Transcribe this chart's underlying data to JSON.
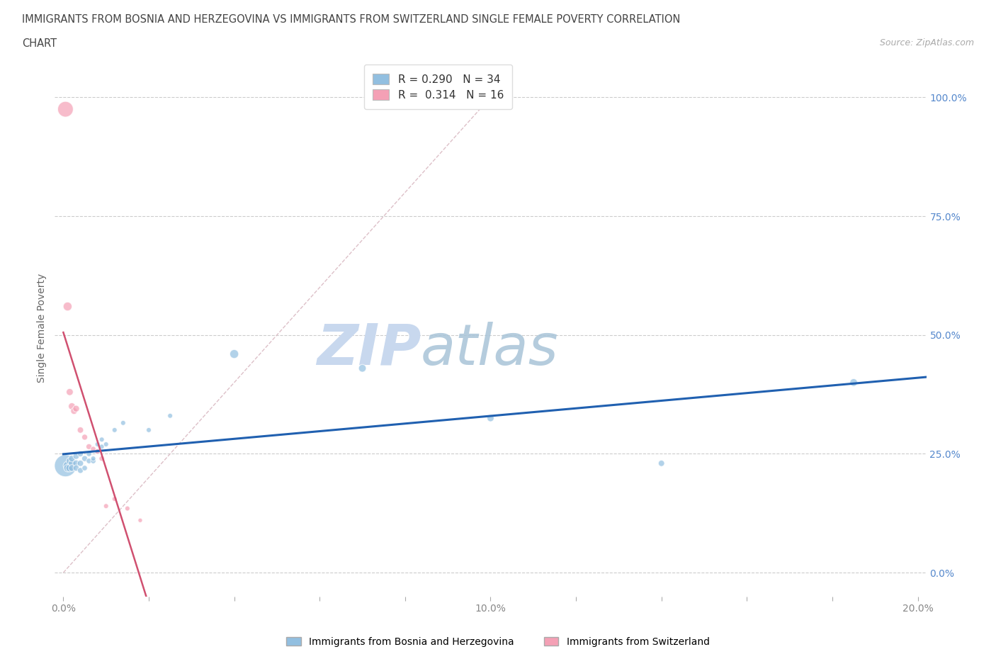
{
  "title_line1": "IMMIGRANTS FROM BOSNIA AND HERZEGOVINA VS IMMIGRANTS FROM SWITZERLAND SINGLE FEMALE POVERTY CORRELATION",
  "title_line2": "CHART",
  "source": "Source: ZipAtlas.com",
  "ylabel": "Single Female Poverty",
  "xlim": [
    -0.002,
    0.202
  ],
  "ylim": [
    -0.05,
    1.08
  ],
  "ytick_values": [
    0.0,
    0.25,
    0.5,
    0.75,
    1.0
  ],
  "xtick_values": [
    0.0,
    0.02,
    0.04,
    0.06,
    0.08,
    0.1,
    0.12,
    0.14,
    0.16,
    0.18,
    0.2
  ],
  "r_bosnia": 0.29,
  "n_bosnia": 34,
  "r_swiss": 0.314,
  "n_swiss": 16,
  "color_bosnia": "#92bfe0",
  "color_swiss": "#f4a0b5",
  "trendline_bosnia_color": "#2060b0",
  "trendline_swiss_color": "#d05070",
  "diagonal_color": "#ddc0c8",
  "background_color": "#ffffff",
  "watermark_zip": "ZIP",
  "watermark_atlas": "atlas",
  "bosnia_x": [
    0.0005,
    0.001,
    0.001,
    0.0015,
    0.0015,
    0.002,
    0.002,
    0.002,
    0.003,
    0.003,
    0.003,
    0.004,
    0.004,
    0.004,
    0.005,
    0.005,
    0.006,
    0.006,
    0.007,
    0.007,
    0.008,
    0.008,
    0.009,
    0.009,
    0.01,
    0.012,
    0.014,
    0.02,
    0.025,
    0.04,
    0.07,
    0.1,
    0.14,
    0.185
  ],
  "bosnia_y": [
    0.225,
    0.225,
    0.22,
    0.22,
    0.235,
    0.23,
    0.22,
    0.24,
    0.23,
    0.22,
    0.245,
    0.23,
    0.215,
    0.25,
    0.24,
    0.22,
    0.25,
    0.235,
    0.235,
    0.24,
    0.255,
    0.27,
    0.265,
    0.28,
    0.27,
    0.3,
    0.315,
    0.3,
    0.33,
    0.46,
    0.43,
    0.325,
    0.23,
    0.4
  ],
  "bosnia_size": [
    500,
    80,
    60,
    60,
    50,
    50,
    45,
    45,
    45,
    40,
    40,
    40,
    35,
    35,
    35,
    30,
    30,
    30,
    30,
    25,
    25,
    25,
    25,
    25,
    25,
    25,
    25,
    25,
    25,
    80,
    60,
    50,
    40,
    60
  ],
  "swiss_x": [
    0.0005,
    0.001,
    0.0015,
    0.002,
    0.0025,
    0.003,
    0.004,
    0.005,
    0.006,
    0.007,
    0.008,
    0.009,
    0.01,
    0.012,
    0.015,
    0.018
  ],
  "swiss_y": [
    0.975,
    0.56,
    0.38,
    0.35,
    0.34,
    0.345,
    0.3,
    0.285,
    0.265,
    0.26,
    0.255,
    0.24,
    0.14,
    0.155,
    0.135,
    0.11
  ],
  "swiss_size": [
    250,
    80,
    50,
    50,
    45,
    45,
    40,
    35,
    35,
    30,
    30,
    30,
    25,
    25,
    25,
    20
  ],
  "swiss_trend_x0": 0.0,
  "swiss_trend_x1": 0.022,
  "bosnia_trend_x0": 0.0,
  "bosnia_trend_x1": 0.202
}
